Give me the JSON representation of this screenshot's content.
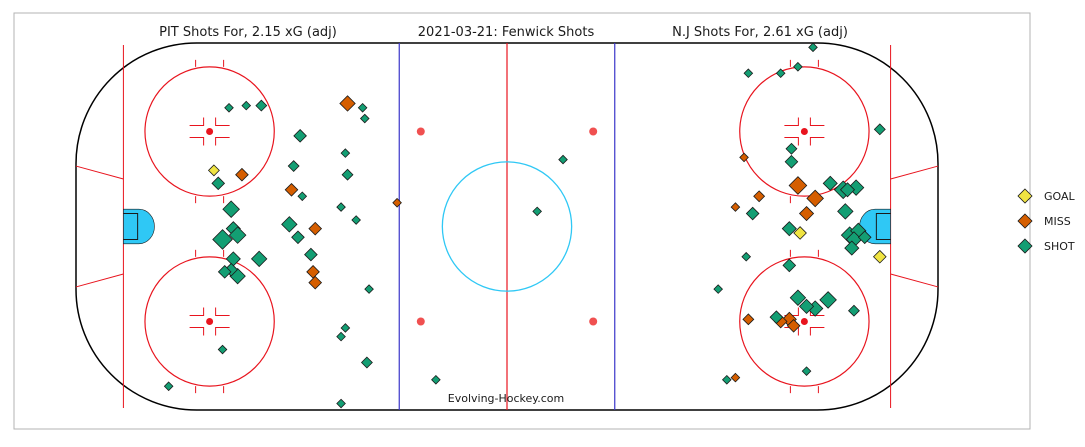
{
  "chart_data": {
    "type": "scatter",
    "title": "2021-03-21:  Fenwick Shots",
    "left_header": "PIT Shots For, 2.15 xG (adj)",
    "right_header": "N.J Shots For, 2.61 xG (adj)",
    "credit": "Evolving-Hockey.com",
    "x_range": [
      -100,
      100
    ],
    "y_range": [
      -42.5,
      42.5
    ],
    "grid": false,
    "legend_position": "right",
    "colors": {
      "GOAL": "#f0e442",
      "MISS": "#d55e00",
      "SHOT": "#139e73"
    },
    "legend": [
      "GOAL",
      "MISS",
      "SHOT"
    ],
    "series": [
      {
        "name": "GOAL",
        "points": [
          {
            "x": -68,
            "y": 13,
            "xg": 0.02
          },
          {
            "x": 68,
            "y": -1.5,
            "xg": 0.03
          },
          {
            "x": 86.5,
            "y": -7,
            "xg": 0.03
          }
        ]
      },
      {
        "name": "MISS",
        "points": [
          {
            "x": -37,
            "y": 28.5,
            "xg": 0.05
          },
          {
            "x": -61.5,
            "y": 12,
            "xg": 0.03
          },
          {
            "x": -50,
            "y": 8.5,
            "xg": 0.03
          },
          {
            "x": -25.5,
            "y": 5.5,
            "xg": 0.01
          },
          {
            "x": -44.5,
            "y": -0.5,
            "xg": 0.03
          },
          {
            "x": -45,
            "y": -10.5,
            "xg": 0.03
          },
          {
            "x": -44.5,
            "y": -13,
            "xg": 0.03
          },
          {
            "x": 55,
            "y": 16,
            "xg": 0.01
          },
          {
            "x": 53,
            "y": 4.5,
            "xg": 0.01
          },
          {
            "x": 58.5,
            "y": 7,
            "xg": 0.02
          },
          {
            "x": 71.5,
            "y": 6.5,
            "xg": 0.06
          },
          {
            "x": 67.5,
            "y": 9.5,
            "xg": 0.07
          },
          {
            "x": 69.5,
            "y": 3,
            "xg": 0.04
          },
          {
            "x": 56,
            "y": -21.5,
            "xg": 0.02
          },
          {
            "x": 65.5,
            "y": -21.5,
            "xg": 0.04
          },
          {
            "x": 53,
            "y": -35,
            "xg": 0.01
          },
          {
            "x": 66.5,
            "y": -23,
            "xg": 0.03
          },
          {
            "x": 63.5,
            "y": -22,
            "xg": 0.03
          }
        ]
      },
      {
        "name": "SHOT",
        "points": [
          {
            "x": -64.5,
            "y": 27.5,
            "xg": 0.01
          },
          {
            "x": -60.5,
            "y": 28,
            "xg": 0.01
          },
          {
            "x": -57,
            "y": 28,
            "xg": 0.02
          },
          {
            "x": -48,
            "y": 21,
            "xg": 0.03
          },
          {
            "x": -49.5,
            "y": 14,
            "xg": 0.02
          },
          {
            "x": -47.5,
            "y": 7,
            "xg": 0.01
          },
          {
            "x": -67,
            "y": 10,
            "xg": 0.03
          },
          {
            "x": -64,
            "y": 4,
            "xg": 0.06
          },
          {
            "x": -63.5,
            "y": -0.5,
            "xg": 0.04
          },
          {
            "x": -66,
            "y": -3,
            "xg": 0.09
          },
          {
            "x": -62.5,
            "y": -2,
            "xg": 0.06
          },
          {
            "x": -50.5,
            "y": 0.5,
            "xg": 0.05
          },
          {
            "x": -48.5,
            "y": -2.5,
            "xg": 0.03
          },
          {
            "x": -45.5,
            "y": -6.5,
            "xg": 0.03
          },
          {
            "x": -57.5,
            "y": -7.5,
            "xg": 0.05
          },
          {
            "x": -63.5,
            "y": -7.5,
            "xg": 0.04
          },
          {
            "x": -62.5,
            "y": -11.5,
            "xg": 0.05
          },
          {
            "x": -64,
            "y": -10,
            "xg": 0.03
          },
          {
            "x": -65.5,
            "y": -10.5,
            "xg": 0.03
          },
          {
            "x": -33.5,
            "y": 27.5,
            "xg": 0.01
          },
          {
            "x": -33,
            "y": 25,
            "xg": 0.01
          },
          {
            "x": -37.5,
            "y": 17,
            "xg": 0.01
          },
          {
            "x": -37,
            "y": 12,
            "xg": 0.02
          },
          {
            "x": -38.5,
            "y": 4.5,
            "xg": 0.01
          },
          {
            "x": -35,
            "y": 1.5,
            "xg": 0.01
          },
          {
            "x": -32,
            "y": -14.5,
            "xg": 0.01
          },
          {
            "x": -37.5,
            "y": -23.5,
            "xg": 0.01
          },
          {
            "x": -38.5,
            "y": -25.5,
            "xg": 0.01
          },
          {
            "x": -32.5,
            "y": -31.5,
            "xg": 0.02
          },
          {
            "x": -38.5,
            "y": -41,
            "xg": 0.01
          },
          {
            "x": -66,
            "y": -28.5,
            "xg": 0.01
          },
          {
            "x": -78.5,
            "y": -37,
            "xg": 0.01
          },
          {
            "x": -16.5,
            "y": -35.5,
            "xg": 0.01
          },
          {
            "x": 7,
            "y": 3.5,
            "xg": 0.01
          },
          {
            "x": 13,
            "y": 15.5,
            "xg": 0.01
          },
          {
            "x": 56,
            "y": 35.5,
            "xg": 0.01
          },
          {
            "x": 63.5,
            "y": 35.5,
            "xg": 0.01
          },
          {
            "x": 67.5,
            "y": 37,
            "xg": 0.01
          },
          {
            "x": 71,
            "y": 41.5,
            "xg": 0.01
          },
          {
            "x": 66,
            "y": 18,
            "xg": 0.02
          },
          {
            "x": 66,
            "y": 15,
            "xg": 0.03
          },
          {
            "x": 75,
            "y": 10,
            "xg": 0.04
          },
          {
            "x": 78,
            "y": 8.5,
            "xg": 0.07
          },
          {
            "x": 81,
            "y": 9,
            "xg": 0.05
          },
          {
            "x": 79,
            "y": 8.5,
            "xg": 0.04
          },
          {
            "x": 86.5,
            "y": 22.5,
            "xg": 0.02
          },
          {
            "x": 78.5,
            "y": 3.5,
            "xg": 0.05
          },
          {
            "x": 79.5,
            "y": -2,
            "xg": 0.06
          },
          {
            "x": 81.5,
            "y": -1,
            "xg": 0.05
          },
          {
            "x": 80.5,
            "y": -3,
            "xg": 0.05
          },
          {
            "x": 80,
            "y": -5,
            "xg": 0.04
          },
          {
            "x": 83,
            "y": -2.5,
            "xg": 0.03
          },
          {
            "x": 57,
            "y": 3,
            "xg": 0.03
          },
          {
            "x": 65.5,
            "y": -0.5,
            "xg": 0.04
          },
          {
            "x": 55.5,
            "y": -7,
            "xg": 0.01
          },
          {
            "x": 65.5,
            "y": -9,
            "xg": 0.03
          },
          {
            "x": 49,
            "y": -14.5,
            "xg": 0.01
          },
          {
            "x": 62.5,
            "y": -21,
            "xg": 0.03
          },
          {
            "x": 67.5,
            "y": -16.5,
            "xg": 0.05
          },
          {
            "x": 71.5,
            "y": -19,
            "xg": 0.05
          },
          {
            "x": 74.5,
            "y": -17,
            "xg": 0.06
          },
          {
            "x": 69.5,
            "y": -18.5,
            "xg": 0.04
          },
          {
            "x": 80.5,
            "y": -19.5,
            "xg": 0.02
          },
          {
            "x": 51,
            "y": -35.5,
            "xg": 0.01
          },
          {
            "x": 69.5,
            "y": -33.5,
            "xg": 0.01
          }
        ]
      }
    ]
  }
}
